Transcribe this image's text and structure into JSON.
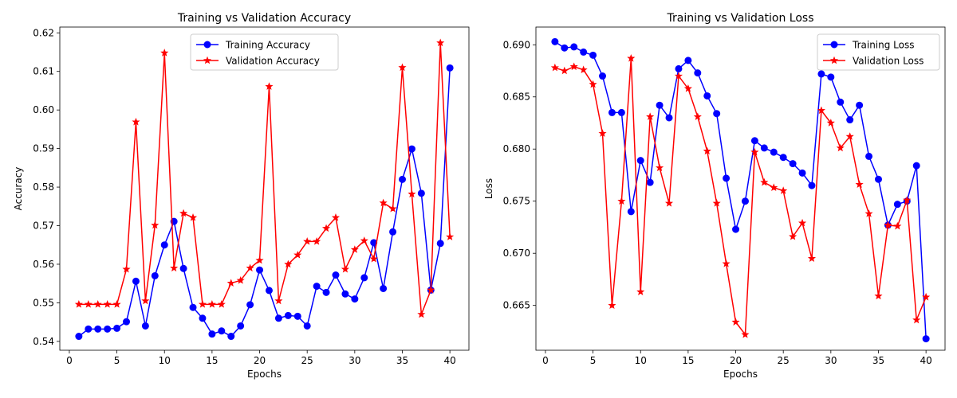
{
  "chart_data": [
    {
      "type": "line",
      "title": "Training vs Validation Accuracy",
      "xlabel": "Epochs",
      "ylabel": "Accuracy",
      "xlim": [
        -1,
        42
      ],
      "ylim": [
        0.5377,
        0.6215
      ],
      "xticks": [
        "0",
        "5",
        "10",
        "15",
        "20",
        "25",
        "30",
        "35",
        "40"
      ],
      "yticks": [
        "0.54",
        "0.55",
        "0.56",
        "0.57",
        "0.58",
        "0.59",
        "0.60",
        "0.61",
        "0.62"
      ],
      "grid": false,
      "legend_position": "upper center",
      "x": [
        1,
        2,
        3,
        4,
        5,
        6,
        7,
        8,
        9,
        10,
        11,
        12,
        13,
        14,
        15,
        16,
        17,
        18,
        19,
        20,
        21,
        22,
        23,
        24,
        25,
        26,
        27,
        28,
        29,
        30,
        31,
        32,
        33,
        34,
        35,
        36,
        37,
        38,
        39,
        40
      ],
      "series": [
        {
          "name": "Training Accuracy",
          "color": "#0000ff",
          "marker": "circle",
          "values": [
            0.5413,
            0.5432,
            0.5432,
            0.5432,
            0.5434,
            0.5451,
            0.5556,
            0.544,
            0.557,
            0.565,
            0.5711,
            0.5589,
            0.5488,
            0.546,
            0.5419,
            0.5427,
            0.5413,
            0.544,
            0.5495,
            0.5585,
            0.5532,
            0.546,
            0.5467,
            0.5465,
            0.544,
            0.5543,
            0.5527,
            0.5572,
            0.5523,
            0.551,
            0.5565,
            0.5656,
            0.5537,
            0.5684,
            0.582,
            0.5899,
            0.5784,
            0.5533,
            0.5654,
            0.6109
          ]
        },
        {
          "name": "Validation Accuracy",
          "color": "#ff0000",
          "marker": "star",
          "values": [
            0.5496,
            0.5496,
            0.5496,
            0.5496,
            0.5496,
            0.5587,
            0.5969,
            0.5505,
            0.5701,
            0.6148,
            0.559,
            0.5732,
            0.5721,
            0.5496,
            0.5496,
            0.5496,
            0.5551,
            0.5558,
            0.559,
            0.561,
            0.6061,
            0.5505,
            0.56,
            0.5624,
            0.5659,
            0.5659,
            0.5693,
            0.5721,
            0.5587,
            0.5638,
            0.5661,
            0.5614,
            0.5759,
            0.5744,
            0.611,
            0.5782,
            0.547,
            0.5533,
            0.6174,
            0.5671
          ]
        }
      ]
    },
    {
      "type": "line",
      "title": "Training vs Validation Loss",
      "xlabel": "Epochs",
      "ylabel": "Loss",
      "xlim": [
        -1,
        42
      ],
      "ylim": [
        0.6607,
        0.6917
      ],
      "xticks": [
        "0",
        "5",
        "10",
        "15",
        "20",
        "25",
        "30",
        "35",
        "40"
      ],
      "yticks": [
        "0.665",
        "0.670",
        "0.675",
        "0.680",
        "0.685",
        "0.690"
      ],
      "grid": false,
      "legend_position": "upper right",
      "x": [
        1,
        2,
        3,
        4,
        5,
        6,
        7,
        8,
        9,
        10,
        11,
        12,
        13,
        14,
        15,
        16,
        17,
        18,
        19,
        20,
        21,
        22,
        23,
        24,
        25,
        26,
        27,
        28,
        29,
        30,
        31,
        32,
        33,
        34,
        35,
        36,
        37,
        38,
        39,
        40
      ],
      "series": [
        {
          "name": "Training Loss",
          "color": "#0000ff",
          "marker": "circle",
          "values": [
            0.6903,
            0.6897,
            0.6898,
            0.6893,
            0.689,
            0.687,
            0.6835,
            0.6835,
            0.674,
            0.6789,
            0.6768,
            0.6842,
            0.683,
            0.6877,
            0.6885,
            0.6873,
            0.6851,
            0.6834,
            0.6772,
            0.6723,
            0.675,
            0.6808,
            0.6801,
            0.6797,
            0.6792,
            0.6786,
            0.6777,
            0.6765,
            0.6872,
            0.6869,
            0.6845,
            0.6828,
            0.6842,
            0.6793,
            0.6771,
            0.6727,
            0.6747,
            0.675,
            0.6784,
            0.6618
          ]
        },
        {
          "name": "Validation Loss",
          "color": "#ff0000",
          "marker": "star",
          "values": [
            0.6878,
            0.6875,
            0.6879,
            0.6876,
            0.6862,
            0.6815,
            0.665,
            0.675,
            0.6887,
            0.6663,
            0.6831,
            0.6782,
            0.6748,
            0.687,
            0.6858,
            0.6831,
            0.6798,
            0.6748,
            0.669,
            0.6634,
            0.6622,
            0.6797,
            0.6768,
            0.6763,
            0.676,
            0.6716,
            0.6729,
            0.6695,
            0.6837,
            0.6825,
            0.6801,
            0.6812,
            0.6766,
            0.6738,
            0.6659,
            0.6727,
            0.6726,
            0.6751,
            0.6636,
            0.6658
          ]
        }
      ]
    }
  ]
}
